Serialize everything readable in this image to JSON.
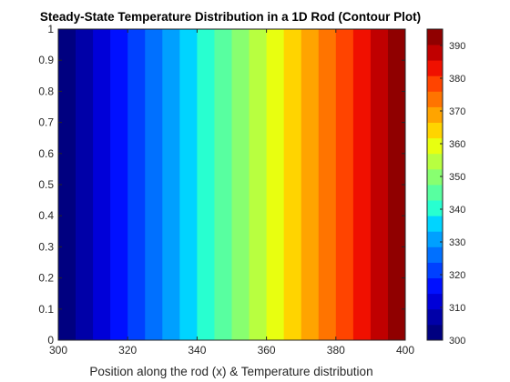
{
  "chart_data": {
    "type": "heatmap",
    "subtype": "filled-contour",
    "title": "Steady-State Temperature Distribution in a 1D Rod (Contour Plot)",
    "xlabel": "Position along the rod (x) & Temperature distribution",
    "ylabel": "",
    "xlim": [
      300,
      400
    ],
    "ylim": [
      0,
      1
    ],
    "x_ticks": [
      "300",
      "320",
      "340",
      "360",
      "380",
      "400"
    ],
    "y_ticks": [
      "0",
      "0.1",
      "0.2",
      "0.3",
      "0.4",
      "0.5",
      "0.6",
      "0.7",
      "0.8",
      "0.9",
      "1"
    ],
    "colorbar": {
      "limits": [
        300,
        395
      ],
      "ticks": [
        "300",
        "310",
        "320",
        "330",
        "340",
        "350",
        "360",
        "370",
        "380",
        "390"
      ],
      "colormap": "jet"
    },
    "levels": [
      300,
      305,
      310,
      315,
      320,
      325,
      330,
      335,
      340,
      345,
      350,
      355,
      360,
      365,
      370,
      375,
      380,
      385,
      390,
      395
    ],
    "bands": [
      {
        "x_start": 300,
        "x_end": 305,
        "value": 300,
        "color": "#000080"
      },
      {
        "x_start": 305,
        "x_end": 310,
        "value": 305,
        "color": "#0000A8"
      },
      {
        "x_start": 310,
        "x_end": 315,
        "value": 310,
        "color": "#0000D8"
      },
      {
        "x_start": 315,
        "x_end": 320,
        "value": 315,
        "color": "#0010FF"
      },
      {
        "x_start": 320,
        "x_end": 325,
        "value": 320,
        "color": "#0040FF"
      },
      {
        "x_start": 325,
        "x_end": 330,
        "value": 325,
        "color": "#0070FF"
      },
      {
        "x_start": 330,
        "x_end": 335,
        "value": 330,
        "color": "#00A0FF"
      },
      {
        "x_start": 335,
        "x_end": 340,
        "value": 335,
        "color": "#00D4FF"
      },
      {
        "x_start": 340,
        "x_end": 345,
        "value": 340,
        "color": "#28FFD0"
      },
      {
        "x_start": 345,
        "x_end": 350,
        "value": 345,
        "color": "#58FFA0"
      },
      {
        "x_start": 350,
        "x_end": 355,
        "value": 350,
        "color": "#88FF70"
      },
      {
        "x_start": 355,
        "x_end": 360,
        "value": 355,
        "color": "#B8FF40"
      },
      {
        "x_start": 360,
        "x_end": 365,
        "value": 360,
        "color": "#E8FF10"
      },
      {
        "x_start": 365,
        "x_end": 370,
        "value": 365,
        "color": "#FFD400"
      },
      {
        "x_start": 370,
        "x_end": 375,
        "value": 370,
        "color": "#FFA400"
      },
      {
        "x_start": 375,
        "x_end": 380,
        "value": 375,
        "color": "#FF7400"
      },
      {
        "x_start": 380,
        "x_end": 385,
        "value": 380,
        "color": "#FF4400"
      },
      {
        "x_start": 385,
        "x_end": 390,
        "value": 385,
        "color": "#F01000"
      },
      {
        "x_start": 390,
        "x_end": 395,
        "value": 390,
        "color": "#C00000"
      },
      {
        "x_start": 395,
        "x_end": 400,
        "value": 395,
        "color": "#900000"
      }
    ],
    "grid": false,
    "legend": "none"
  }
}
